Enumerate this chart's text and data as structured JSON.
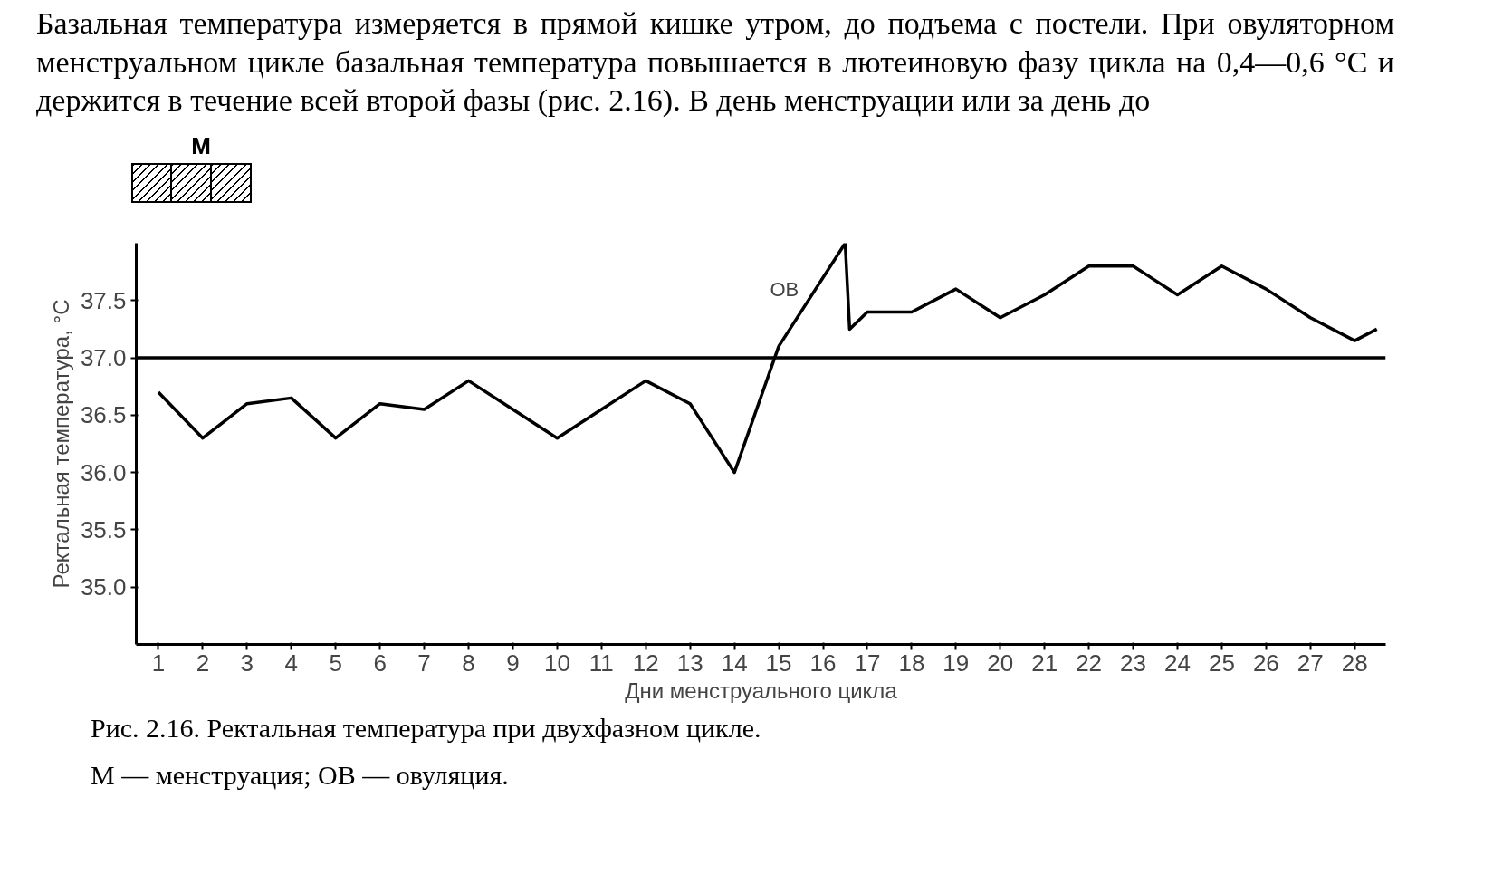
{
  "chart_data": {
    "type": "line",
    "xlabel": "Дни менструального цикла",
    "ylabel": "Ректальная температура, °C",
    "x": [
      1,
      2,
      3,
      4,
      5,
      6,
      7,
      8,
      9,
      10,
      11,
      12,
      13,
      14,
      15,
      16.5,
      16.6,
      17,
      18,
      19,
      20,
      21,
      22,
      23,
      24,
      25,
      26,
      27,
      28,
      28.5
    ],
    "series": [
      {
        "color": "#000000",
        "values": [
          36.7,
          36.3,
          36.6,
          36.65,
          36.3,
          36.6,
          36.55,
          36.8,
          36.55,
          36.3,
          36.55,
          36.8,
          36.6,
          36.0,
          37.1,
          38.0,
          37.25,
          37.4,
          37.4,
          37.6,
          37.35,
          37.55,
          37.8,
          37.8,
          37.55,
          37.8,
          37.6,
          37.35,
          37.15,
          37.25
        ]
      }
    ],
    "xlim": [
      0.5,
      28.7
    ],
    "xticks": [
      1,
      2,
      3,
      4,
      5,
      6,
      7,
      8,
      9,
      10,
      11,
      12,
      13,
      14,
      15,
      16,
      17,
      18,
      19,
      20,
      21,
      22,
      23,
      24,
      25,
      26,
      27,
      28
    ],
    "ylim": [
      34.5,
      38.0
    ],
    "yticks": [
      {
        "value": 35.0,
        "label": "35.0"
      },
      {
        "value": 35.5,
        "label": "35.5"
      },
      {
        "value": 36.0,
        "label": "36.0"
      },
      {
        "value": 36.5,
        "label": "36.5"
      },
      {
        "value": 37.0,
        "label": "37.0"
      },
      {
        "value": 37.5,
        "label": "37.5"
      }
    ],
    "ref_lines": [
      {
        "axis": "y",
        "value": 37.0,
        "color": "#000000"
      }
    ],
    "grid": false,
    "marker": "none",
    "line_style": "solid",
    "annotations": [
      "Базальная температура измеряется в прямой кишке утром, до подъема с постели. При овуляторном менструальном цикле базальная температура повышается в лютеиновую фазу цикла на 0,4—0,6 °С и держится в течение всей второй фазы (рис. 2.16). В день менструации или за день до",
      "М",
      "ОВ",
      "Рис. 2.16. Ректальная температура при двухфазном цикле.",
      "М — менструация; ОВ — овуляция."
    ]
  }
}
